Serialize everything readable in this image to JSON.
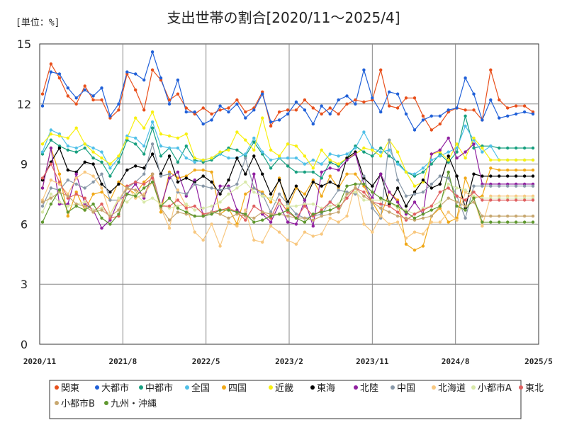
{
  "chart_data": {
    "type": "line",
    "title": "支出世帯の割合[2020/11～2025/4]",
    "unit_label": "[単位：%]",
    "ylim": [
      0,
      15
    ],
    "y_ticks": [
      "0",
      "3",
      "6",
      "9",
      "12",
      "15"
    ],
    "x_ticks": [
      "2020/11",
      "2021/8",
      "2022/5",
      "2023/2",
      "2023/11",
      "2024/8",
      "2025/5"
    ],
    "grid": true,
    "legend_position": "bottom",
    "series": [
      {
        "name": "関東",
        "color": "#e8501c",
        "values": [
          12.5,
          14.0,
          13.3,
          12.4,
          12.0,
          12.9,
          12.2,
          12.2,
          11.3,
          11.7,
          13.5,
          12.7,
          11.7,
          13.7,
          13.2,
          12.2,
          12.5,
          11.8,
          11.5,
          11.8,
          11.5,
          11.7,
          11.8,
          12.2,
          11.6,
          11.8,
          12.6,
          10.9,
          11.6,
          11.7,
          11.7,
          12.2,
          11.8,
          11.5,
          11.8,
          11.5,
          12.0,
          12.2,
          12.1,
          12.2,
          13.7,
          11.9,
          11.8,
          12.3,
          12.3,
          11.4,
          10.7,
          11.0,
          11.6,
          11.8,
          11.7,
          11.7,
          11.2,
          13.7,
          12.2,
          11.8,
          11.9,
          11.9,
          11.6
        ]
      },
      {
        "name": "大都市",
        "color": "#2060d8",
        "values": [
          11.9,
          13.6,
          13.5,
          12.8,
          12.3,
          12.7,
          12.4,
          12.8,
          11.4,
          12.0,
          13.6,
          13.5,
          13.2,
          14.6,
          13.3,
          12.0,
          13.2,
          11.6,
          11.6,
          11.0,
          11.2,
          11.9,
          11.6,
          12.0,
          11.3,
          11.7,
          12.5,
          11.1,
          11.2,
          11.5,
          12.1,
          11.7,
          11.0,
          11.9,
          11.5,
          12.2,
          12.4,
          12.0,
          13.7,
          12.3,
          11.6,
          12.6,
          12.5,
          11.5,
          10.7,
          11.2,
          11.4,
          11.4,
          11.7,
          11.8,
          13.3,
          12.5,
          11.2,
          12.2,
          11.3,
          11.4,
          11.5,
          11.6,
          11.5
        ]
      },
      {
        "name": "中都市",
        "color": "#18a080",
        "values": [
          9.5,
          10.2,
          9.9,
          9.7,
          9.6,
          9.8,
          9.3,
          9.1,
          8.4,
          9.1,
          10.2,
          10.0,
          9.5,
          10.8,
          9.4,
          9.8,
          9.1,
          9.9,
          9.2,
          9.1,
          9.2,
          9.5,
          9.8,
          9.7,
          9.4,
          10.1,
          9.5,
          8.8,
          9.3,
          8.9,
          8.6,
          8.6,
          8.6,
          8.3,
          9.1,
          8.9,
          9.3,
          9.9,
          9.6,
          9.4,
          9.8,
          9.4,
          9.1,
          8.6,
          8.4,
          8.6,
          9.0,
          9.5,
          9.1,
          9.6,
          11.4,
          9.8,
          9.9,
          9.9,
          9.8,
          9.8,
          9.8,
          9.8,
          9.8
        ]
      },
      {
        "name": "全国",
        "color": "#50c0e8",
        "values": [
          9.6,
          10.7,
          10.5,
          9.9,
          9.8,
          10.0,
          9.8,
          9.6,
          8.8,
          9.3,
          10.4,
          10.3,
          9.9,
          11.1,
          9.9,
          9.8,
          9.8,
          9.3,
          9.1,
          9.2,
          9.3,
          9.5,
          9.3,
          9.3,
          9.5,
          10.3,
          9.6,
          9.2,
          9.3,
          9.3,
          9.3,
          9.0,
          9.2,
          9.0,
          9.5,
          9.4,
          9.5,
          9.8,
          10.6,
          9.8,
          9.6,
          9.7,
          9.0,
          8.6,
          8.5,
          8.8,
          9.2,
          9.4,
          9.6,
          9.8,
          10.9,
          10.2,
          9.6,
          9.9,
          9.2,
          9.2,
          9.2,
          9.2,
          9.2
        ]
      },
      {
        "name": "四国",
        "color": "#f0a818",
        "values": [
          7.8,
          9.8,
          8.5,
          6.4,
          7.6,
          6.7,
          7.5,
          7.6,
          7.2,
          8.1,
          7.8,
          7.5,
          8.1,
          8.5,
          6.6,
          8.6,
          8.3,
          8.4,
          8.7,
          8.7,
          8.6,
          6.5,
          6.8,
          6.0,
          7.5,
          7.8,
          7.6,
          7.1,
          8.3,
          6.8,
          7.8,
          7.5,
          8.2,
          7.4,
          8.4,
          7.8,
          8.5,
          8.5,
          7.9,
          7.1,
          6.4,
          7.6,
          7.2,
          5.0,
          4.7,
          4.9,
          6.4,
          6.8,
          6.1,
          6.3,
          8.3,
          7.3,
          7.4,
          8.8,
          8.7,
          8.7,
          8.7,
          8.7,
          8.7
        ]
      },
      {
        "name": "近畿",
        "color": "#f8f010",
        "values": [
          10.0,
          10.5,
          10.4,
          10.3,
          10.8,
          10.0,
          9.6,
          9.3,
          9.0,
          9.4,
          10.3,
          11.3,
          10.8,
          11.6,
          10.5,
          10.4,
          10.3,
          10.5,
          9.3,
          9.2,
          9.3,
          9.6,
          9.7,
          10.6,
          10.2,
          9.7,
          11.3,
          9.7,
          9.4,
          10.0,
          9.9,
          9.4,
          8.8,
          9.7,
          9.2,
          9.0,
          9.3,
          9.5,
          9.8,
          9.7,
          9.4,
          10.2,
          9.6,
          8.6,
          7.9,
          8.1,
          9.5,
          9.6,
          9.2,
          10.0,
          9.3,
          10.3,
          9.8,
          9.2,
          9.2,
          9.2,
          9.2,
          9.2,
          9.2
        ]
      },
      {
        "name": "東海",
        "color": "#000000",
        "values": [
          8.2,
          9.1,
          9.8,
          8.7,
          8.6,
          9.1,
          9.0,
          8.0,
          7.6,
          8.0,
          8.7,
          8.9,
          8.8,
          9.5,
          8.5,
          9.4,
          8.1,
          8.3,
          8.1,
          8.4,
          8.1,
          7.5,
          8.2,
          9.3,
          8.5,
          9.4,
          8.5,
          7.5,
          8.2,
          7.1,
          7.9,
          7.2,
          8.1,
          7.9,
          8.1,
          7.9,
          9.3,
          9.6,
          8.3,
          7.9,
          8.5,
          7.0,
          7.8,
          6.9,
          7.6,
          8.2,
          7.8,
          8.0,
          9.4,
          8.4,
          6.8,
          8.5,
          8.4,
          8.4,
          8.4,
          8.4,
          8.4,
          8.4,
          8.4
        ]
      },
      {
        "name": "北陸",
        "color": "#9020a0",
        "values": [
          7.8,
          9.8,
          7.0,
          7.0,
          8.5,
          7.0,
          6.7,
          5.8,
          6.2,
          7.2,
          7.5,
          8.0,
          7.3,
          8.5,
          6.9,
          8.3,
          8.6,
          7.4,
          8.2,
          6.4,
          6.6,
          7.9,
          7.9,
          6.7,
          6.4,
          8.5,
          6.5,
          6.1,
          7.0,
          6.1,
          6.0,
          7.2,
          5.9,
          8.6,
          8.8,
          8.7,
          9.2,
          9.5,
          8.0,
          7.3,
          8.5,
          7.6,
          7.1,
          6.5,
          7.1,
          6.5,
          9.5,
          9.7,
          10.3,
          9.3,
          9.6,
          10.0,
          8.0,
          8.0,
          8.0,
          8.0,
          8.0,
          8.0,
          8.0
        ]
      },
      {
        "name": "中国",
        "color": "#8898a8",
        "values": [
          6.9,
          7.8,
          7.7,
          8.2,
          8.0,
          7.8,
          8.1,
          8.5,
          7.2,
          7.2,
          7.8,
          8.1,
          8.5,
          10.0,
          8.4,
          8.5,
          7.6,
          7.5,
          8.0,
          7.9,
          7.8,
          7.7,
          7.8,
          8.0,
          9.3,
          7.8,
          7.5,
          6.6,
          7.5,
          7.0,
          6.5,
          6.3,
          6.4,
          6.5,
          7.1,
          7.7,
          7.6,
          7.5,
          8.4,
          6.8,
          6.3,
          10.2,
          8.2,
          7.4,
          7.5,
          7.6,
          8.0,
          8.4,
          8.3,
          7.4,
          6.3,
          7.9,
          7.9,
          7.9,
          7.9,
          7.9,
          7.9,
          7.9,
          7.9
        ]
      },
      {
        "name": "北海道",
        "color": "#f8c880",
        "values": [
          7.2,
          8.2,
          8.0,
          7.5,
          8.3,
          8.6,
          8.4,
          7.8,
          6.5,
          7.2,
          7.9,
          7.3,
          7.5,
          8.1,
          6.8,
          5.8,
          7.7,
          6.9,
          5.6,
          5.2,
          6.0,
          4.9,
          6.1,
          5.9,
          6.7,
          5.2,
          5.1,
          5.9,
          5.6,
          5.2,
          5.0,
          5.6,
          5.4,
          5.5,
          6.3,
          6.1,
          6.4,
          8.0,
          6.0,
          5.6,
          6.4,
          6.0,
          6.1,
          5.3,
          5.6,
          5.5,
          6.1,
          6.1,
          6.6,
          6.2,
          7.6,
          7.3,
          5.9,
          7.4,
          7.4,
          7.4,
          7.4,
          7.4,
          7.4
        ]
      },
      {
        "name": "小都市A",
        "color": "#d8e8a8",
        "values": [
          6.6,
          7.5,
          7.1,
          6.9,
          7.0,
          7.1,
          6.7,
          6.8,
          6.5,
          7.3,
          7.1,
          7.5,
          7.1,
          7.3,
          7.0,
          6.8,
          6.9,
          7.0,
          6.7,
          6.8,
          6.9,
          7.1,
          7.5,
          7.8,
          8.1,
          7.6,
          7.4,
          7.3,
          7.0,
          6.9,
          6.9,
          7.0,
          7.0,
          6.8,
          6.9,
          7.0,
          7.5,
          7.6,
          7.2,
          7.2,
          7.2,
          7.1,
          6.8,
          6.7,
          6.5,
          6.8,
          6.9,
          7.1,
          8.0,
          7.8,
          7.7,
          7.4,
          7.3,
          7.3,
          7.3,
          7.3,
          7.3,
          7.3,
          7.3
        ]
      },
      {
        "name": "東北",
        "color": "#e06060",
        "values": [
          8.3,
          9.0,
          8.1,
          7.3,
          7.5,
          7.3,
          6.6,
          7.0,
          6.3,
          6.4,
          7.9,
          8.1,
          8.0,
          8.3,
          6.9,
          6.9,
          7.2,
          6.8,
          6.9,
          6.5,
          6.6,
          6.7,
          6.8,
          6.6,
          6.2,
          6.9,
          6.6,
          6.3,
          7.2,
          6.6,
          6.3,
          6.9,
          6.4,
          6.7,
          7.1,
          6.8,
          7.3,
          7.8,
          7.6,
          7.1,
          7.0,
          6.9,
          6.6,
          6.2,
          6.5,
          6.7,
          6.9,
          7.6,
          7.8,
          7.4,
          7.2,
          7.6,
          7.2,
          7.2,
          7.2,
          7.2,
          7.2,
          7.2,
          7.2
        ]
      },
      {
        "name": "小都市B",
        "color": "#c8a870",
        "values": [
          7.1,
          7.3,
          7.6,
          7.4,
          7.0,
          6.9,
          6.6,
          6.7,
          6.4,
          6.7,
          7.8,
          7.7,
          7.4,
          8.5,
          6.8,
          6.2,
          6.6,
          6.5,
          6.4,
          6.4,
          6.6,
          6.5,
          6.3,
          6.5,
          6.4,
          6.3,
          6.6,
          6.5,
          6.5,
          6.4,
          6.3,
          6.3,
          6.2,
          6.4,
          6.5,
          6.6,
          7.5,
          7.8,
          7.4,
          7.1,
          6.8,
          6.6,
          6.4,
          6.3,
          6.2,
          6.3,
          6.4,
          6.9,
          7.3,
          7.1,
          6.9,
          7.1,
          6.4,
          6.4,
          6.4,
          6.4,
          6.4,
          6.4,
          6.4
        ]
      },
      {
        "name": "九州・沖縄",
        "color": "#609830",
        "values": [
          6.1,
          7.0,
          7.7,
          6.6,
          6.9,
          6.7,
          7.0,
          6.3,
          6.0,
          6.5,
          7.5,
          7.4,
          7.8,
          8.1,
          6.9,
          7.3,
          6.8,
          6.6,
          6.4,
          6.4,
          6.5,
          6.7,
          6.7,
          6.6,
          6.5,
          6.1,
          6.2,
          6.4,
          6.5,
          6.7,
          6.3,
          6.1,
          6.5,
          6.6,
          6.7,
          6.9,
          7.9,
          8.0,
          8.0,
          7.6,
          7.3,
          7.1,
          6.9,
          6.6,
          6.3,
          6.5,
          6.7,
          6.9,
          8.6,
          6.9,
          6.7,
          7.3,
          6.1,
          6.1,
          6.1,
          6.1,
          6.1,
          6.1,
          6.1
        ]
      }
    ]
  }
}
